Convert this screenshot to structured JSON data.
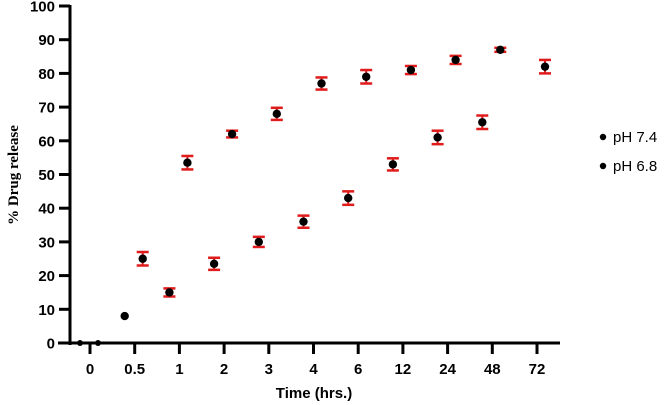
{
  "chart_data": {
    "type": "scatter",
    "title": "",
    "xlabel": "Time (hrs.)",
    "ylabel": "% Drug release",
    "ylim": [
      0,
      100
    ],
    "yticks": [
      0,
      10,
      20,
      30,
      40,
      50,
      60,
      70,
      80,
      90,
      100
    ],
    "categories": [
      "0",
      "0.5",
      "1",
      "2",
      "3",
      "4",
      "6",
      "12",
      "24",
      "48",
      "72"
    ],
    "grid": false,
    "legend_position": "right",
    "series": [
      {
        "name": "pH 7.4",
        "marker_color": "#000000",
        "error_color": "#e01b1b",
        "values": [
          0,
          25,
          53.5,
          62,
          68,
          77,
          79,
          81,
          84,
          87,
          82
        ],
        "errors": [
          0,
          2,
          2,
          1,
          1.8,
          1.8,
          2,
          1.2,
          1.2,
          0.6,
          2
        ]
      },
      {
        "name": "pH 6.8",
        "marker_color": "#000000",
        "error_color": "#e01b1b",
        "values": [
          0,
          8,
          15,
          23.5,
          30,
          36,
          43,
          53,
          61,
          65.5,
          null
        ],
        "errors": [
          0,
          0,
          1.2,
          1.8,
          1.5,
          1.8,
          2,
          1.8,
          2,
          2,
          null
        ]
      }
    ]
  }
}
